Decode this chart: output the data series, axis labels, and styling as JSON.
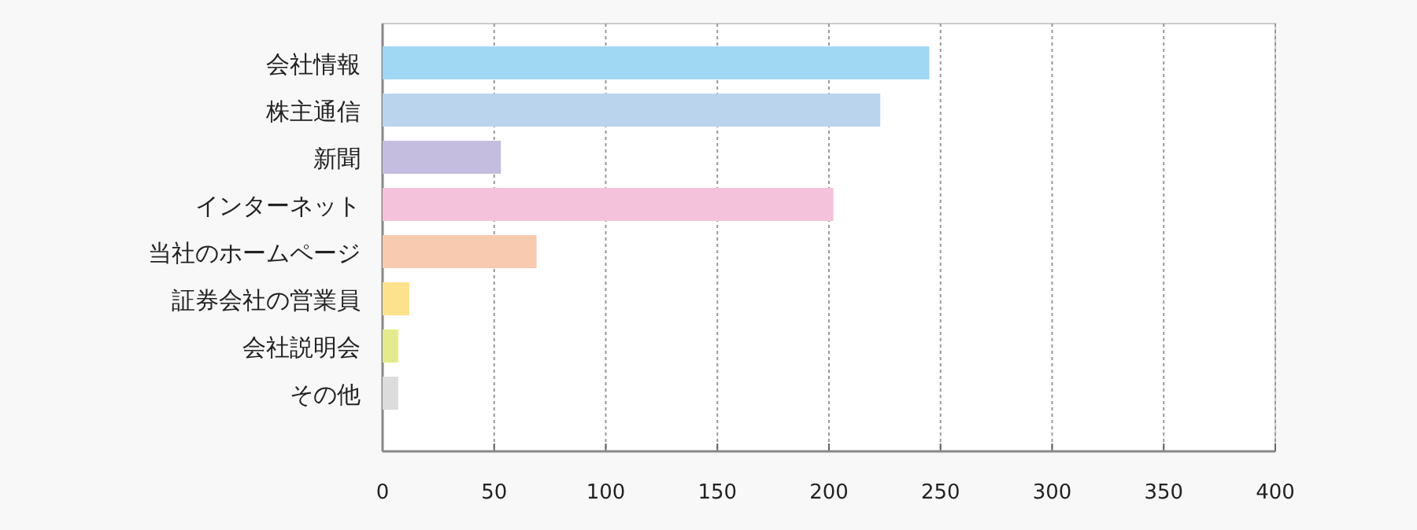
{
  "chart_data": {
    "type": "bar",
    "orientation": "horizontal",
    "categories": [
      "会社情報",
      "株主通信",
      "新聞",
      "インターネット",
      "当社のホームページ",
      "証券会社の営業員",
      "会社説明会",
      "その他"
    ],
    "values": [
      245,
      223,
      53,
      202,
      69,
      12,
      7,
      7
    ],
    "colors": [
      "#a0d8f4",
      "#bbd4ee",
      "#c5bddf",
      "#f4c2da",
      "#f8cab0",
      "#fde28e",
      "#e4eb8e",
      "#dcdcdc"
    ],
    "xlim": [
      0,
      400
    ],
    "xticks": [
      0,
      50,
      100,
      150,
      200,
      250,
      300,
      350,
      400
    ],
    "grid": "x"
  }
}
